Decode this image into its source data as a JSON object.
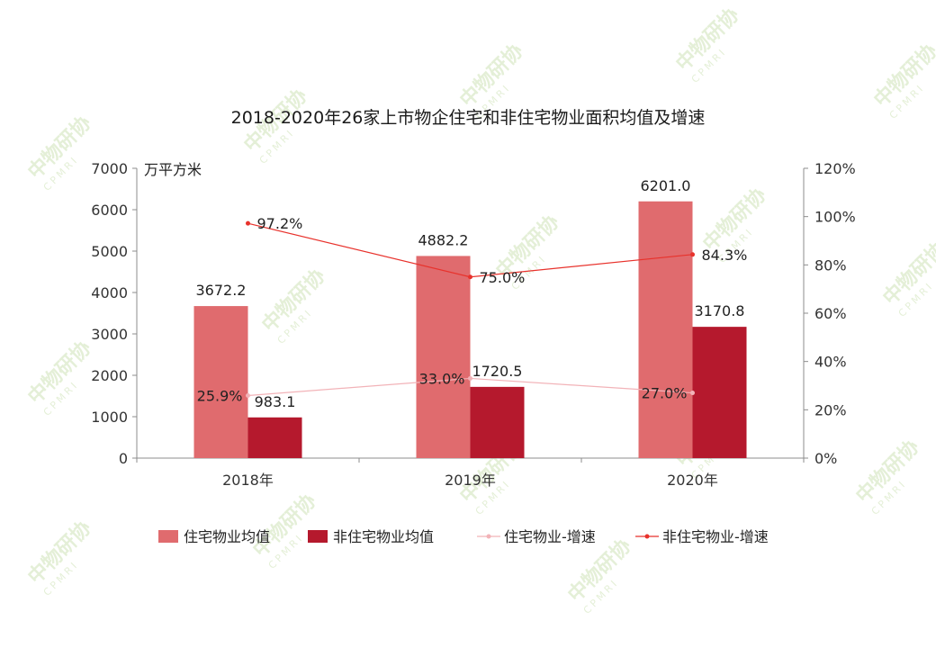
{
  "watermark": {
    "brand": "中物研协",
    "code": "CPMRI"
  },
  "chart_data": {
    "type": "bar",
    "title": "2018-2020年26家上市物企住宅和非住宅物业面积均值及增速",
    "y_unit": "万平方米",
    "categories": [
      "2018年",
      "2019年",
      "2020年"
    ],
    "ylim": [
      0,
      7000
    ],
    "y2lim": [
      0,
      120
    ],
    "yticks": [
      0,
      1000,
      2000,
      3000,
      4000,
      5000,
      6000,
      7000
    ],
    "y2ticks": [
      "0%",
      "20%",
      "40%",
      "60%",
      "80%",
      "100%",
      "120%"
    ],
    "grid": false,
    "legend_position": "bottom",
    "series": [
      {
        "name": "住宅物业均值",
        "kind": "bar",
        "axis": "left",
        "color": "#e06b6e",
        "values": [
          3672.2,
          4882.2,
          6201.0
        ],
        "labels": [
          "3672.2",
          "4882.2",
          "6201.0"
        ]
      },
      {
        "name": "非住宅物业均值",
        "kind": "bar",
        "axis": "left",
        "color": "#b5192d",
        "values": [
          983.1,
          1720.5,
          3170.8
        ],
        "labels": [
          "983.1",
          "1720.5",
          "3170.8"
        ]
      },
      {
        "name": "住宅物业-增速",
        "kind": "line",
        "axis": "right",
        "color": "#f2b3b8",
        "values": [
          25.9,
          33.0,
          27.0
        ],
        "labels": [
          "25.9%",
          "33.0%",
          "27.0%"
        ]
      },
      {
        "name": "非住宅物业-增速",
        "kind": "line",
        "axis": "right",
        "color": "#e8322c",
        "values": [
          97.2,
          75.0,
          84.3
        ],
        "labels": [
          "97.2%",
          "75.0%",
          "84.3%"
        ]
      }
    ]
  }
}
